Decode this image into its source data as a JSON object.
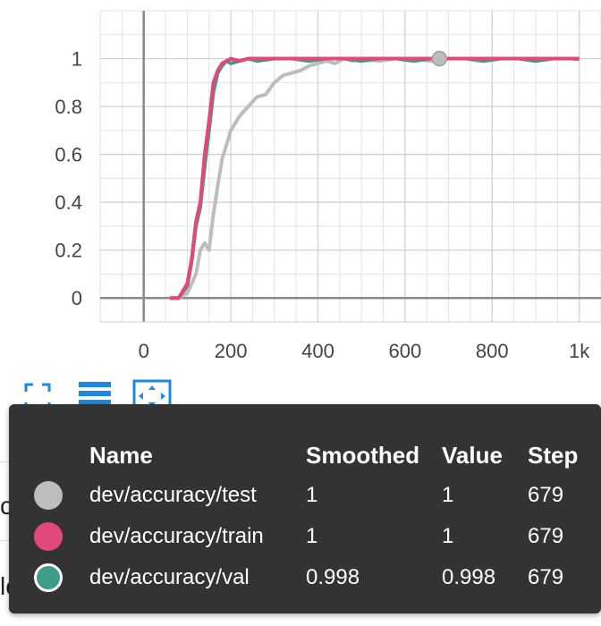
{
  "toolbar": {
    "fullscreen_icon": "fullscreen-icon",
    "data_table_icon": "list-icon",
    "fit_domain_icon": "fit-domain-icon"
  },
  "background_labels": {
    "chart_1": "char_accuracy",
    "chart_2": "loss"
  },
  "tooltip": {
    "headers": {
      "name": "Name",
      "smoothed": "Smoothed",
      "value": "Value",
      "step": "Step"
    },
    "rows": [
      {
        "name": "dev/accuracy/test",
        "smoothed": "1",
        "value": "1",
        "step": "679",
        "color": "#bdbdbd",
        "ring": "#bdbdbd"
      },
      {
        "name": "dev/accuracy/train",
        "smoothed": "1",
        "value": "1",
        "step": "679",
        "color": "#e2487a",
        "ring": "#e2487a"
      },
      {
        "name": "dev/accuracy/val",
        "smoothed": "0.998",
        "value": "0.998",
        "step": "679",
        "color": "#3f9b8a",
        "ring": "#ffffff"
      }
    ]
  },
  "chart_data": {
    "type": "line",
    "xlim": [
      -100,
      1050
    ],
    "ylim": [
      -0.1,
      1.2
    ],
    "x_ticks": [
      0,
      200,
      400,
      600,
      800,
      1000
    ],
    "x_tick_labels": [
      "0",
      "200",
      "400",
      "600",
      "800",
      "1k"
    ],
    "y_ticks": [
      0,
      0.2,
      0.4,
      0.6,
      0.8,
      1
    ],
    "y_tick_labels": [
      "0",
      "0.2",
      "0.4",
      "0.6",
      "0.8",
      "1"
    ],
    "grid": true,
    "hover_step": 679,
    "series": [
      {
        "name": "dev/accuracy/test",
        "color": "#bdbdbd",
        "x": [
          60,
          80,
          100,
          120,
          130,
          140,
          150,
          160,
          170,
          180,
          190,
          200,
          220,
          240,
          260,
          280,
          300,
          320,
          340,
          360,
          380,
          400,
          420,
          440,
          460,
          480,
          500,
          540,
          580,
          620,
          660,
          700,
          740,
          780,
          820,
          860,
          900,
          940,
          980,
          1000
        ],
        "y": [
          0,
          0,
          0.02,
          0.1,
          0.2,
          0.23,
          0.2,
          0.35,
          0.47,
          0.58,
          0.64,
          0.7,
          0.76,
          0.8,
          0.84,
          0.85,
          0.9,
          0.93,
          0.94,
          0.95,
          0.97,
          0.98,
          0.99,
          0.98,
          1,
          0.99,
          1,
          0.99,
          1,
          1,
          0.99,
          1,
          1,
          0.99,
          1,
          1,
          0.99,
          1,
          1,
          1
        ]
      },
      {
        "name": "dev/accuracy/val",
        "color": "#3f9b8a",
        "x": [
          60,
          80,
          100,
          110,
          120,
          130,
          140,
          150,
          160,
          170,
          180,
          190,
          200,
          220,
          240,
          260,
          300,
          340,
          380,
          420,
          460,
          500,
          540,
          580,
          620,
          660,
          700,
          740,
          780,
          820,
          860,
          900,
          940,
          980,
          1000
        ],
        "y": [
          0,
          0,
          0.05,
          0.15,
          0.3,
          0.38,
          0.55,
          0.7,
          0.86,
          0.94,
          0.97,
          0.99,
          0.98,
          0.99,
          1,
          0.99,
          1,
          1,
          0.99,
          1,
          1,
          0.99,
          1,
          1,
          0.99,
          1,
          1,
          1,
          0.99,
          1,
          1,
          0.99,
          1,
          1,
          0.998
        ]
      },
      {
        "name": "dev/accuracy/train",
        "color": "#e2487a",
        "x": [
          60,
          80,
          100,
          110,
          120,
          130,
          140,
          150,
          160,
          170,
          180,
          190,
          200,
          220,
          240,
          260,
          300,
          340,
          380,
          420,
          460,
          500,
          540,
          580,
          620,
          660,
          700,
          740,
          780,
          820,
          860,
          900,
          940,
          980,
          1000
        ],
        "y": [
          0,
          0,
          0.06,
          0.16,
          0.32,
          0.4,
          0.6,
          0.74,
          0.9,
          0.95,
          0.98,
          0.99,
          1,
          0.99,
          1,
          1,
          1,
          1,
          1,
          1,
          1,
          1,
          1,
          1,
          1,
          1,
          1,
          1,
          1,
          1,
          1,
          1,
          1,
          1,
          1
        ]
      }
    ]
  }
}
